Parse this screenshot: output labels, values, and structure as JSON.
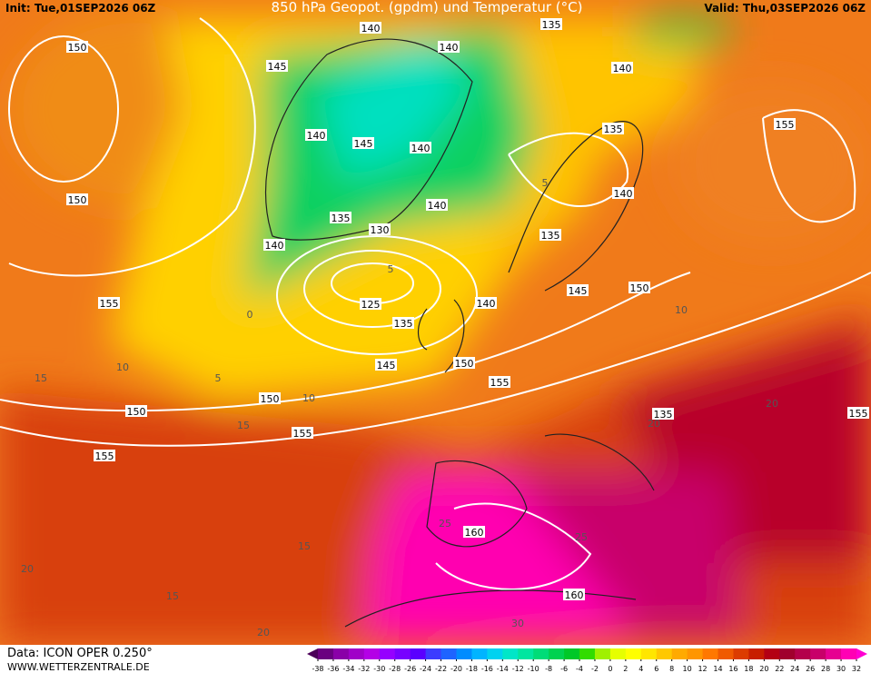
{
  "header": {
    "init": "Init: Tue,01SEP2026 06Z",
    "title": "850 hPa Geopot. (gpdm) und Temperatur (°C)",
    "valid": "Valid: Thu,03SEP2026 06Z"
  },
  "footer": {
    "data": "Data: ICON OPER 0.250°",
    "site": "WWW.WETTERZENTRALE.DE"
  },
  "colorbar": {
    "ticks": [
      -38,
      -36,
      -34,
      -32,
      -30,
      -28,
      -26,
      -24,
      -22,
      -20,
      -18,
      -16,
      -14,
      -12,
      -10,
      -8,
      -6,
      -4,
      -2,
      0,
      2,
      4,
      6,
      8,
      10,
      12,
      14,
      16,
      18,
      20,
      22,
      24,
      26,
      28,
      30,
      32
    ],
    "colors": [
      "#4b0058",
      "#6a0080",
      "#8a00a8",
      "#a000c8",
      "#b400e6",
      "#9600ff",
      "#7800ff",
      "#5a00ff",
      "#3c3cff",
      "#1e64ff",
      "#008cff",
      "#00b4ff",
      "#00d2f0",
      "#00e6c8",
      "#00e6a0",
      "#00dc78",
      "#00d250",
      "#00c828",
      "#32dc00",
      "#a0f000",
      "#e6ff00",
      "#ffff00",
      "#ffe600",
      "#ffc800",
      "#ffaa00",
      "#ff9600",
      "#ff7800",
      "#f05a00",
      "#dc3c00",
      "#c81e00",
      "#b40014",
      "#a0002d",
      "#b4004b",
      "#c80069",
      "#e60091",
      "#ff00b4",
      "#ff00d2"
    ]
  },
  "geopotential_labels": [
    150,
    145,
    140,
    140,
    140,
    135,
    155,
    140,
    145,
    140,
    150,
    140,
    140,
    135,
    130,
    135,
    140,
    125,
    145,
    150,
    140,
    155,
    135,
    145,
    150,
    155,
    150,
    150,
    135,
    155,
    155,
    160,
    160,
    135,
    155
  ],
  "temperature_labels": [
    10,
    5,
    0,
    15,
    15,
    10,
    5,
    20,
    20,
    25,
    25,
    30,
    15,
    20,
    20,
    15,
    10,
    5
  ]
}
